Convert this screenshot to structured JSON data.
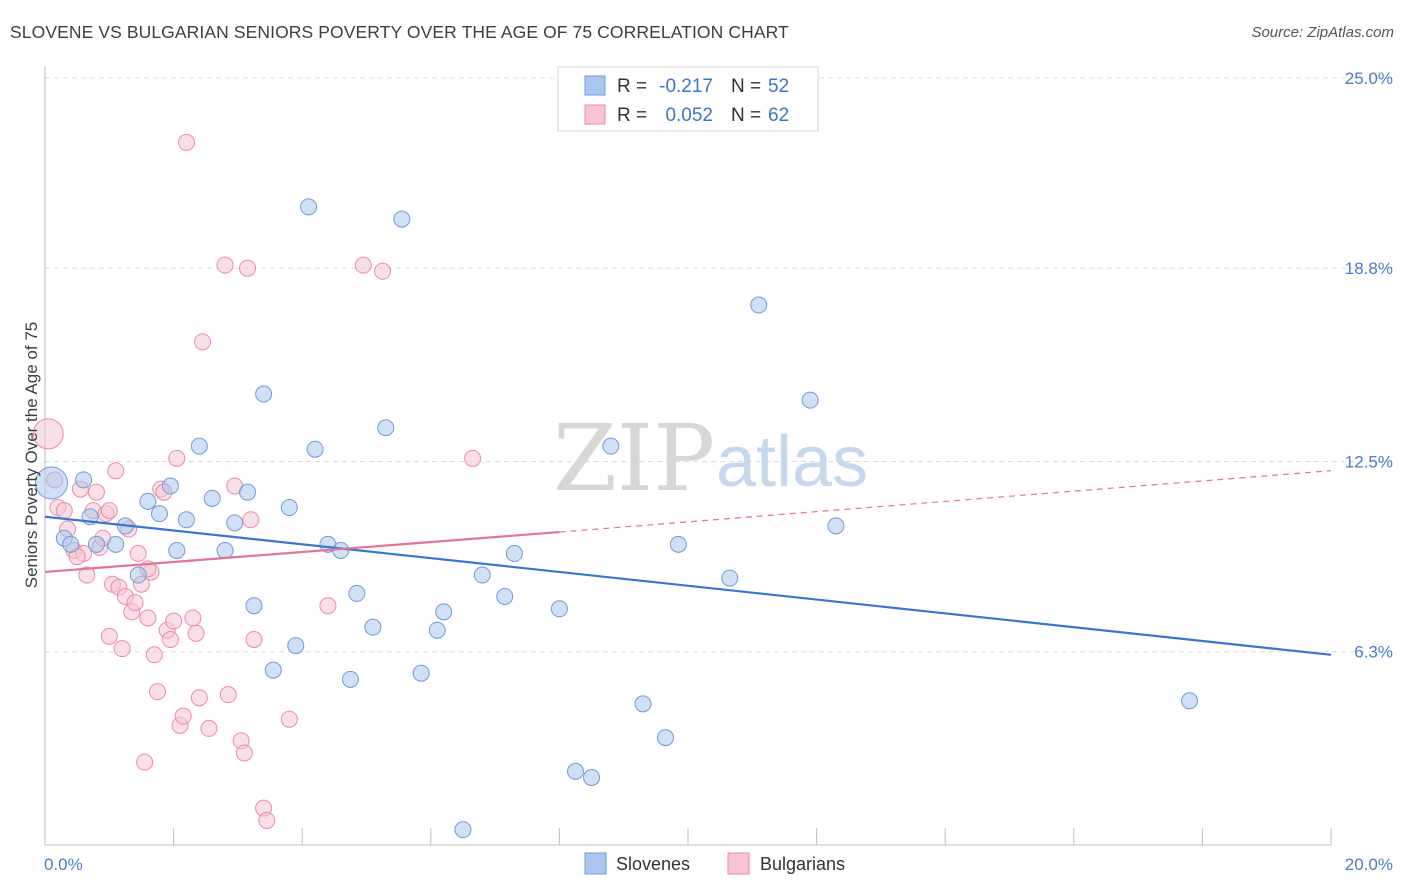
{
  "header": {
    "title": "SLOVENE VS BULGARIAN SENIORS POVERTY OVER THE AGE OF 75 CORRELATION CHART",
    "source": "Source: ZipAtlas.com"
  },
  "watermark": {
    "zip": "ZIP",
    "atlas": "atlas"
  },
  "legend_top": {
    "rows": [
      {
        "r_label": "R =",
        "r_value": "-0.217",
        "n_label": "N =",
        "n_value": "52",
        "color": "#a9c7ef",
        "stroke": "#6f9bd8"
      },
      {
        "r_label": "R =",
        "r_value": "0.052",
        "n_label": "N =",
        "n_value": "62",
        "color": "#f8c4d3",
        "stroke": "#ec8aa8"
      }
    ]
  },
  "legend_bottom": {
    "items": [
      {
        "label": "Slovenes",
        "color": "#a9c7ef",
        "stroke": "#6f9bd8"
      },
      {
        "label": "Bulgarians",
        "color": "#f8c4d3",
        "stroke": "#ec8aa8"
      }
    ]
  },
  "chart_data": {
    "type": "scatter",
    "title": "SLOVENE VS BULGARIAN SENIORS POVERTY OVER THE AGE OF 75 CORRELATION CHART",
    "xlabel": "",
    "ylabel": "Seniors Poverty Over the Age of 75",
    "xlim": [
      0,
      20
    ],
    "ylim": [
      0,
      25.0
    ],
    "x_tick_labels": [
      "0.0%",
      "20.0%"
    ],
    "y_ticks": [
      6.3,
      12.5,
      18.8,
      25.0
    ],
    "y_tick_labels": [
      "6.3%",
      "12.5%",
      "18.8%",
      "25.0%"
    ],
    "grid": true,
    "colors": {
      "slovenes": "#3a76d1",
      "bulgarians": "#e5729a"
    },
    "series": [
      {
        "name": "Slovenes",
        "color": "#a9c7ef",
        "points": [
          [
            0.1,
            11.8
          ],
          [
            0.3,
            10.0
          ],
          [
            0.6,
            11.9
          ],
          [
            0.7,
            10.7
          ],
          [
            0.8,
            9.8
          ],
          [
            1.1,
            9.8
          ],
          [
            1.25,
            10.4
          ],
          [
            1.45,
            8.8
          ],
          [
            1.6,
            11.2
          ],
          [
            1.78,
            10.8
          ],
          [
            1.95,
            11.7
          ],
          [
            2.05,
            9.6
          ],
          [
            2.2,
            10.6
          ],
          [
            2.4,
            13.0
          ],
          [
            2.6,
            11.3
          ],
          [
            2.8,
            9.6
          ],
          [
            2.95,
            10.5
          ],
          [
            3.15,
            11.5
          ],
          [
            3.25,
            7.8
          ],
          [
            3.4,
            14.7
          ],
          [
            3.55,
            5.7
          ],
          [
            3.8,
            11.0
          ],
          [
            3.9,
            6.5
          ],
          [
            4.1,
            20.8
          ],
          [
            4.2,
            12.9
          ],
          [
            4.4,
            9.8
          ],
          [
            4.6,
            9.6
          ],
          [
            4.75,
            5.4
          ],
          [
            4.85,
            8.2
          ],
          [
            5.1,
            7.1
          ],
          [
            5.3,
            13.6
          ],
          [
            5.55,
            20.4
          ],
          [
            5.85,
            5.6
          ],
          [
            6.1,
            7.0
          ],
          [
            6.2,
            7.6
          ],
          [
            6.5,
            0.5
          ],
          [
            6.8,
            8.8
          ],
          [
            7.15,
            8.1
          ],
          [
            7.3,
            9.5
          ],
          [
            8.0,
            7.7
          ],
          [
            8.25,
            2.4
          ],
          [
            8.5,
            2.2
          ],
          [
            8.8,
            13.0
          ],
          [
            9.3,
            4.6
          ],
          [
            9.65,
            3.5
          ],
          [
            9.85,
            9.8
          ],
          [
            10.65,
            8.7
          ],
          [
            11.1,
            17.6
          ],
          [
            11.9,
            14.5
          ],
          [
            12.3,
            10.4
          ],
          [
            17.8,
            4.7
          ],
          [
            0.4,
            9.8
          ]
        ]
      },
      {
        "name": "Bulgarians",
        "color": "#f8c4d3",
        "points": [
          [
            0.05,
            13.4
          ],
          [
            0.15,
            11.9
          ],
          [
            0.2,
            11.0
          ],
          [
            0.3,
            10.9
          ],
          [
            0.35,
            10.3
          ],
          [
            0.45,
            9.6
          ],
          [
            0.55,
            11.6
          ],
          [
            0.6,
            9.5
          ],
          [
            0.65,
            8.8
          ],
          [
            0.75,
            10.9
          ],
          [
            0.8,
            11.5
          ],
          [
            0.85,
            9.7
          ],
          [
            0.9,
            10.0
          ],
          [
            0.95,
            10.8
          ],
          [
            1.0,
            6.8
          ],
          [
            1.05,
            8.5
          ],
          [
            1.1,
            12.2
          ],
          [
            1.15,
            8.4
          ],
          [
            1.2,
            6.4
          ],
          [
            1.25,
            8.1
          ],
          [
            1.3,
            10.3
          ],
          [
            1.35,
            7.6
          ],
          [
            1.4,
            7.9
          ],
          [
            1.45,
            9.5
          ],
          [
            1.5,
            8.5
          ],
          [
            1.55,
            2.7
          ],
          [
            1.6,
            7.4
          ],
          [
            1.65,
            8.9
          ],
          [
            1.7,
            6.2
          ],
          [
            1.75,
            5.0
          ],
          [
            1.8,
            11.6
          ],
          [
            1.85,
            11.5
          ],
          [
            1.9,
            7.0
          ],
          [
            1.95,
            6.7
          ],
          [
            2.0,
            7.3
          ],
          [
            2.05,
            12.6
          ],
          [
            2.1,
            3.9
          ],
          [
            2.15,
            4.2
          ],
          [
            2.2,
            22.9
          ],
          [
            2.3,
            7.4
          ],
          [
            2.35,
            6.9
          ],
          [
            2.4,
            4.8
          ],
          [
            2.45,
            16.4
          ],
          [
            2.55,
            3.8
          ],
          [
            2.8,
            18.9
          ],
          [
            2.85,
            4.9
          ],
          [
            2.95,
            11.7
          ],
          [
            3.05,
            3.4
          ],
          [
            3.1,
            3.0
          ],
          [
            3.15,
            18.8
          ],
          [
            3.2,
            10.6
          ],
          [
            3.25,
            6.7
          ],
          [
            3.4,
            1.2
          ],
          [
            3.45,
            0.8
          ],
          [
            3.8,
            4.1
          ],
          [
            4.4,
            7.8
          ],
          [
            4.95,
            18.9
          ],
          [
            5.25,
            18.7
          ],
          [
            6.65,
            12.6
          ],
          [
            1.0,
            10.9
          ],
          [
            0.5,
            9.4
          ],
          [
            1.6,
            9.0
          ]
        ]
      }
    ],
    "trendlines": [
      {
        "series": "Slovenes",
        "from": [
          0,
          10.7
        ],
        "to": [
          20,
          6.2
        ],
        "style": "solid"
      },
      {
        "series": "Bulgarians",
        "from": [
          0,
          8.9
        ],
        "to": [
          8,
          10.2
        ],
        "style": "solid"
      },
      {
        "series": "Bulgarians",
        "from": [
          8,
          10.2
        ],
        "to": [
          20,
          12.2
        ],
        "style": "dashed"
      }
    ]
  }
}
